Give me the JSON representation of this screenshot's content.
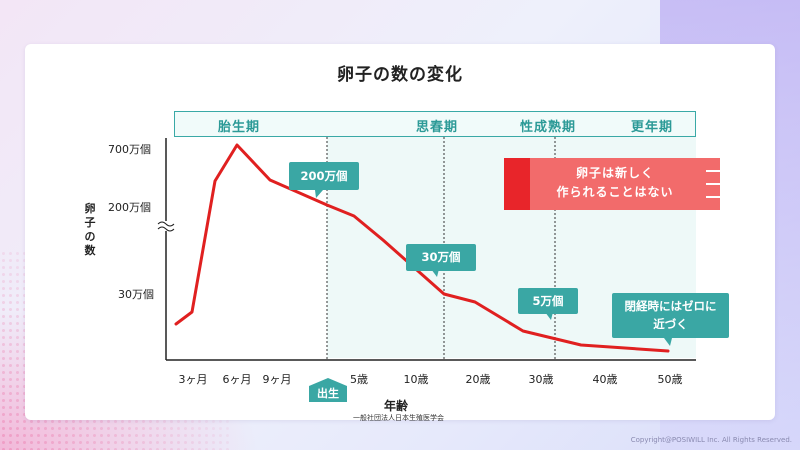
{
  "title": "卵子の数の変化",
  "copyright": "Copyright@POSIWILL Inc. All Rights Reserved.",
  "periods": [
    "胎生期",
    "思春期",
    "性成熟期",
    "更年期"
  ],
  "birth_label": "出生",
  "source": "一般社団法人日本生殖医学会",
  "callouts": {
    "no_new_line1": "卵子は新しく",
    "no_new_line2": "作られることはない",
    "menopause_line1": "閉経時にはゼロに",
    "menopause_line2": "近づく"
  },
  "colors": {
    "line": "#e02020",
    "teal": "#3aa7a4",
    "teal_light": "#eef9f8",
    "red_box": "#f26b6b",
    "red_block": "#e8252a"
  },
  "chart_data": {
    "type": "line",
    "title": "卵子の数の変化",
    "xlabel": "年齢",
    "ylabel": "卵子の数",
    "x_tick_labels": [
      "3ヶ月",
      "6ヶ月",
      "9ヶ月",
      "5歳",
      "10歳",
      "20歳",
      "30歳",
      "40歳",
      "50歳"
    ],
    "y_tick_labels": [
      "700万個",
      "200万個",
      "30万個"
    ],
    "y_axis_break": true,
    "series": [
      {
        "name": "",
        "x": [
          "2ヶ月",
          "3ヶ月",
          "5ヶ月",
          "6ヶ月",
          "9ヶ月",
          "出生",
          "5歳",
          "10歳",
          "15歳",
          "20歳",
          "30歳",
          "40歳",
          "50歳"
        ],
        "values": [
          3.5,
          6,
          400,
          700,
          500,
          200,
          170,
          100,
          30,
          18,
          5,
          2,
          0.5
        ],
        "unit": "万個"
      }
    ],
    "annotations": [
      {
        "label": "200万個",
        "x": "出生",
        "value": 200
      },
      {
        "label": "30万個",
        "x": "15歳",
        "value": 30
      },
      {
        "label": "5万個",
        "x": "30歳",
        "value": 5
      }
    ]
  }
}
